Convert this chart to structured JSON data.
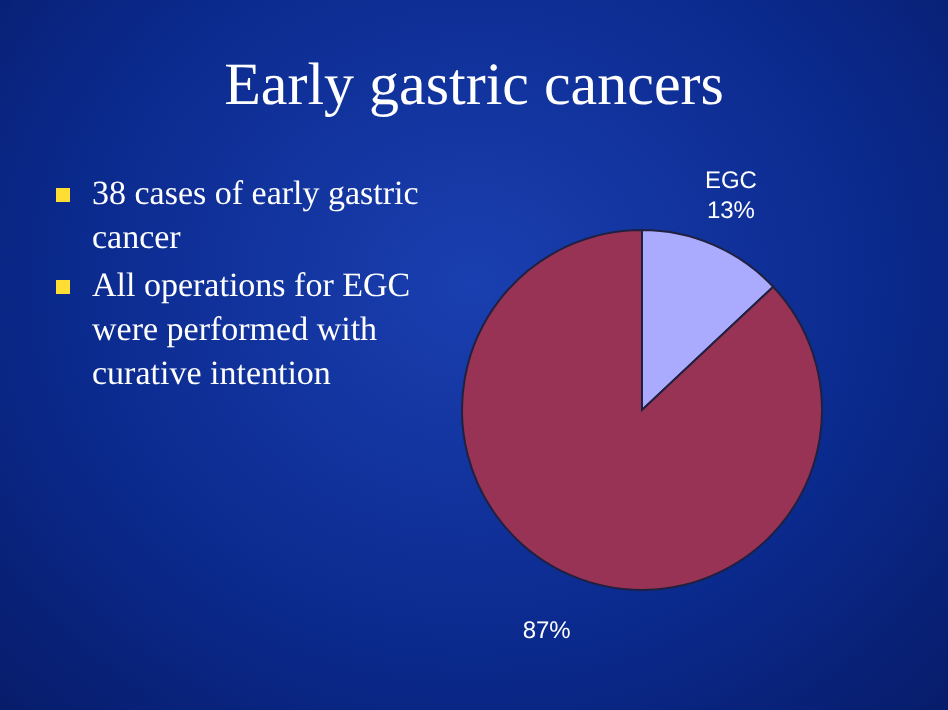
{
  "chart_data": {
    "type": "pie",
    "title": "Early gastric cancers",
    "categories": [
      "EGC",
      null
    ],
    "values": [
      13,
      87
    ],
    "colors": [
      "#aaaaff",
      "#993355"
    ],
    "value_labels": [
      "13%",
      "87%"
    ],
    "annotations": [
      "38 cases of early gastric cancer",
      "All operations for EGC were performed with curative intention"
    ]
  }
}
